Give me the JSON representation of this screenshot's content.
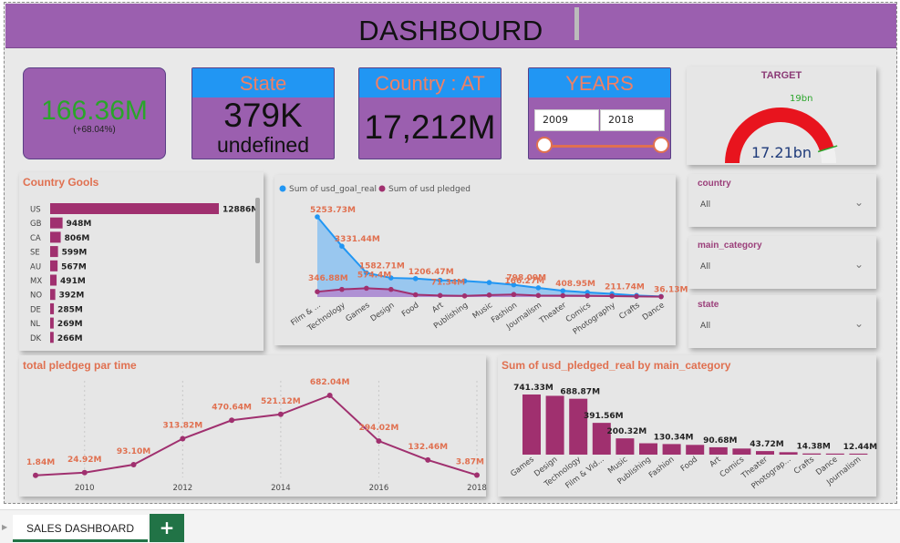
{
  "banner": {
    "title": "DASHBOURD"
  },
  "kpi": {
    "total": {
      "value": "166.36M",
      "change": "(+68.04%)"
    },
    "state": {
      "header": "State",
      "value": "379K",
      "sub": "undefined"
    },
    "country": {
      "header": "Country : AT",
      "value": "17,212M"
    },
    "years": {
      "header": "YEARS",
      "from": "2009",
      "to": "2018",
      "range_fraction": [
        0.0,
        1.0
      ]
    }
  },
  "target": {
    "title": "TARGET",
    "target_label": "19bn",
    "value_label": "17.21bn",
    "fill_fraction": 0.906
  },
  "country_goals": {
    "title": "Country Gools",
    "chart_data": {
      "type": "bar",
      "categories": [
        "US",
        "GB",
        "CA",
        "SE",
        "AU",
        "MX",
        "NO",
        "DE",
        "NL",
        "DK"
      ],
      "values": [
        12886,
        948,
        806,
        599,
        567,
        491,
        392,
        285,
        269,
        266
      ],
      "labels": [
        "12886M",
        "948M",
        "806M",
        "599M",
        "567M",
        "491M",
        "392M",
        "285M",
        "269M",
        "266M"
      ]
    }
  },
  "goal_vs_pledged": {
    "legend": [
      "Sum of usd_goal_real",
      "Sum of usd pledged"
    ],
    "chart_data": {
      "type": "area",
      "categories": [
        "Film & ...",
        "Technology",
        "Games",
        "Design",
        "Food",
        "Art",
        "Publishing",
        "Music",
        "Fashion",
        "Journalism",
        "Theater",
        "Comics",
        "Photography",
        "Crafts",
        "Dance"
      ],
      "series": [
        {
          "name": "Sum of usd_goal_real",
          "values": [
            5253.73,
            3331.44,
            1582.71,
            1250,
            1206.47,
            1100,
            1050,
            950,
            798.09,
            600,
            408.95,
            300,
            211.74,
            100,
            36.13
          ]
        },
        {
          "name": "Sum of usd pledged",
          "values": [
            346.88,
            500,
            574.4,
            500,
            150,
            100,
            71.34,
            130,
            166.27,
            100,
            90,
            80,
            60,
            40,
            20
          ]
        }
      ],
      "point_labels_goal": [
        "5253.73M",
        "3331.44M",
        "1582.71M",
        "",
        "1206.47M",
        "",
        "",
        "",
        "798.09M",
        "",
        "408.95M",
        "",
        "211.74M",
        "",
        "36.13M"
      ],
      "point_labels_pledged": [
        "346.88M",
        "",
        "574.4M",
        "",
        "",
        "71.34M",
        "",
        "",
        "166.27M",
        "",
        "",
        "",
        "",
        "",
        ""
      ],
      "ylim": [
        0,
        6000
      ]
    }
  },
  "slicers": [
    {
      "title": "country",
      "value": "All"
    },
    {
      "title": "main_category",
      "value": "All"
    },
    {
      "title": "state",
      "value": "All"
    }
  ],
  "pledged_time": {
    "title": "total pledgeg par time",
    "chart_data": {
      "type": "line",
      "x": [
        2009,
        2010,
        2011,
        2012,
        2013,
        2014,
        2015,
        2016,
        2017,
        2018
      ],
      "values": [
        1.84,
        24.92,
        93.1,
        313.82,
        470.64,
        521.12,
        682.04,
        294.02,
        132.46,
        3.87
      ],
      "labels": [
        "1.84M",
        "24.92M",
        "93.10M",
        "313.82M",
        "470.64M",
        "521.12M",
        "682.04M",
        "294.02M",
        "132.46M",
        "3.87M"
      ],
      "x_ticks": [
        "2010",
        "2012",
        "2014",
        "2016",
        "2018"
      ],
      "ylim": [
        0,
        750
      ]
    }
  },
  "pledged_category": {
    "title": "Sum of usd_pledged_real by main_category",
    "chart_data": {
      "type": "bar",
      "categories": [
        "Games",
        "Design",
        "Technology",
        "Film & Vid...",
        "Music",
        "Publishing",
        "Fashion",
        "Food",
        "Art",
        "Comics",
        "Theater",
        "Photograp...",
        "Crafts",
        "Dance",
        "Journalism"
      ],
      "values": [
        741.33,
        725,
        688.87,
        391.56,
        200.32,
        140,
        130.34,
        120,
        90.68,
        75,
        43.72,
        30,
        14.38,
        13,
        12.44
      ],
      "labels": [
        "741.33M",
        "",
        "688.87M",
        "391.56M",
        "200.32M",
        "",
        "130.34M",
        "",
        "90.68M",
        "",
        "43.72M",
        "",
        "14.38M",
        "",
        "12.44M"
      ],
      "ylim": [
        0,
        800
      ]
    }
  },
  "tabs": {
    "sheet": "SALES DASHBOARD",
    "add": "+"
  },
  "colors": {
    "purple": "#9b5faf",
    "magenta": "#a0306f",
    "blue": "#2196f3",
    "orange": "#e07050",
    "red": "#e8141e",
    "green": "#2aa52a"
  }
}
